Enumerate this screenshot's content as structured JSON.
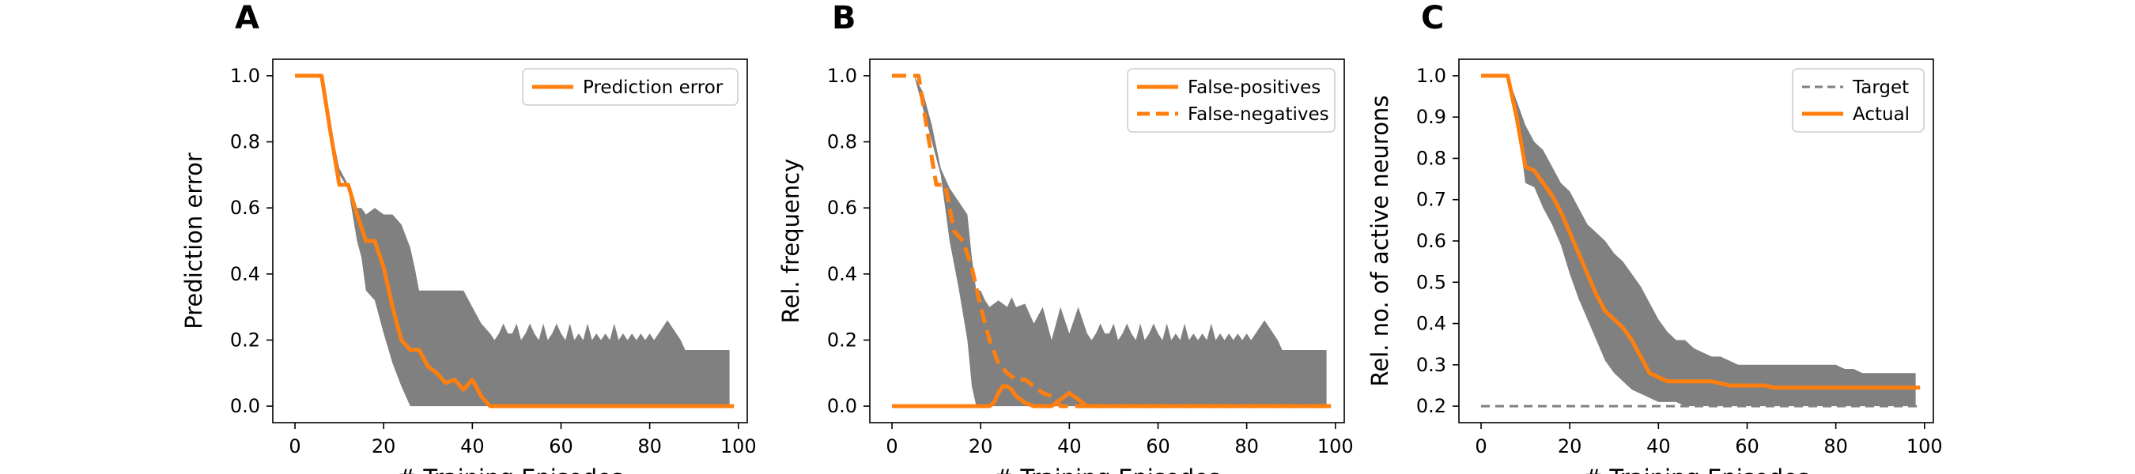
{
  "chart_data": [
    {
      "type": "line",
      "panel_label": "A",
      "xlabel": "# Training Episodes",
      "ylabel": "Prediction error",
      "xlim": [
        -5,
        102
      ],
      "ylim": [
        -0.05,
        1.05
      ],
      "xticks": [
        0,
        20,
        40,
        60,
        80,
        100
      ],
      "yticks": [
        0.0,
        0.2,
        0.4,
        0.6,
        0.8,
        1.0
      ],
      "ytick_labels": [
        "0.0",
        "0.2",
        "0.4",
        "0.6",
        "0.8",
        "1.0"
      ],
      "legend_position": "top-right",
      "band": {
        "color": "#808080",
        "x": [
          0,
          6,
          8,
          10,
          12,
          14,
          15,
          16,
          18,
          20,
          22,
          24,
          26,
          27,
          28,
          30,
          32,
          34,
          36,
          38,
          40,
          42,
          44,
          45,
          46,
          47,
          48,
          49,
          50,
          51,
          52,
          53,
          54,
          55,
          56,
          57,
          58,
          59,
          60,
          61,
          62,
          63,
          64,
          65,
          66,
          67,
          68,
          69,
          70,
          71,
          72,
          73,
          74,
          75,
          76,
          77,
          78,
          79,
          80,
          81,
          82,
          83,
          84,
          85,
          86,
          87,
          88,
          90,
          92,
          94,
          96,
          98
        ],
        "upper": [
          1.0,
          1.0,
          0.85,
          0.72,
          0.67,
          0.6,
          0.6,
          0.58,
          0.6,
          0.58,
          0.58,
          0.55,
          0.48,
          0.42,
          0.35,
          0.35,
          0.35,
          0.35,
          0.35,
          0.35,
          0.3,
          0.25,
          0.22,
          0.2,
          0.22,
          0.25,
          0.22,
          0.22,
          0.25,
          0.2,
          0.22,
          0.25,
          0.22,
          0.2,
          0.25,
          0.2,
          0.22,
          0.25,
          0.22,
          0.2,
          0.25,
          0.2,
          0.22,
          0.2,
          0.25,
          0.2,
          0.22,
          0.2,
          0.22,
          0.2,
          0.25,
          0.2,
          0.22,
          0.2,
          0.22,
          0.2,
          0.22,
          0.2,
          0.22,
          0.2,
          0.22,
          0.24,
          0.26,
          0.24,
          0.22,
          0.2,
          0.17,
          0.17,
          0.17,
          0.17,
          0.17,
          0.17
        ],
        "lower": [
          1.0,
          1.0,
          0.85,
          0.7,
          0.66,
          0.5,
          0.45,
          0.35,
          0.32,
          0.22,
          0.13,
          0.06,
          0.0,
          0.0,
          0.0,
          0.0,
          0.0,
          0.0,
          0.0,
          0.0,
          0.0,
          0.0,
          0.0,
          0.0,
          0.0,
          0.0,
          0.0,
          0.0,
          0.0,
          0.0,
          0.0,
          0.0,
          0.0,
          0.0,
          0.0,
          0.0,
          0.0,
          0.0,
          0.0,
          0.0,
          0.0,
          0.0,
          0.0,
          0.0,
          0.0,
          0.0,
          0.0,
          0.0,
          0.0,
          0.0,
          0.0,
          0.0,
          0.0,
          0.0,
          0.0,
          0.0,
          0.0,
          0.0,
          0.0,
          0.0,
          0.0,
          0.0,
          0.0,
          0.0,
          0.0,
          0.0,
          0.0,
          0.0,
          0.0,
          0.0,
          0.0,
          0.0
        ]
      },
      "series": [
        {
          "name": "Prediction error",
          "color": "#ff7f0e",
          "dash": "solid",
          "x": [
            0,
            6,
            8,
            10,
            12,
            14,
            16,
            18,
            20,
            22,
            24,
            26,
            28,
            30,
            32,
            34,
            36,
            38,
            40,
            42,
            44,
            46,
            60,
            80,
            99
          ],
          "y": [
            1.0,
            1.0,
            0.83,
            0.67,
            0.67,
            0.58,
            0.5,
            0.5,
            0.42,
            0.3,
            0.2,
            0.17,
            0.17,
            0.12,
            0.1,
            0.07,
            0.08,
            0.05,
            0.08,
            0.03,
            0.0,
            0.0,
            0.0,
            0.0,
            0.0
          ]
        }
      ]
    },
    {
      "type": "line",
      "panel_label": "B",
      "xlabel": "# Training Episodes",
      "ylabel": "Rel. frequency",
      "xlim": [
        -5,
        102
      ],
      "ylim": [
        -0.05,
        1.05
      ],
      "xticks": [
        0,
        20,
        40,
        60,
        80,
        100
      ],
      "yticks": [
        0.0,
        0.2,
        0.4,
        0.6,
        0.8,
        1.0
      ],
      "ytick_labels": [
        "0.0",
        "0.2",
        "0.4",
        "0.6",
        "0.8",
        "1.0"
      ],
      "legend_position": "top-right",
      "band": {
        "color": "#808080",
        "x": [
          0,
          5,
          7,
          9,
          11,
          13,
          15,
          17,
          18,
          19,
          20,
          21,
          22,
          24,
          26,
          27,
          28,
          30,
          32,
          34,
          36,
          38,
          40,
          42,
          44,
          45,
          46,
          47,
          48,
          49,
          50,
          51,
          52,
          53,
          54,
          55,
          56,
          57,
          58,
          59,
          60,
          61,
          62,
          63,
          64,
          65,
          66,
          67,
          68,
          69,
          70,
          71,
          72,
          73,
          74,
          75,
          76,
          77,
          78,
          79,
          80,
          81,
          82,
          83,
          84,
          85,
          86,
          87,
          88,
          90,
          92,
          94,
          96,
          98
        ],
        "upper": [
          1.0,
          1.0,
          0.95,
          0.85,
          0.72,
          0.66,
          0.62,
          0.58,
          0.45,
          0.35,
          0.35,
          0.32,
          0.3,
          0.32,
          0.3,
          0.33,
          0.3,
          0.31,
          0.25,
          0.3,
          0.2,
          0.3,
          0.22,
          0.3,
          0.22,
          0.2,
          0.22,
          0.25,
          0.22,
          0.22,
          0.25,
          0.2,
          0.22,
          0.25,
          0.22,
          0.2,
          0.25,
          0.2,
          0.22,
          0.25,
          0.22,
          0.2,
          0.25,
          0.2,
          0.22,
          0.2,
          0.25,
          0.2,
          0.22,
          0.2,
          0.22,
          0.2,
          0.25,
          0.2,
          0.22,
          0.2,
          0.22,
          0.2,
          0.22,
          0.2,
          0.22,
          0.2,
          0.22,
          0.24,
          0.26,
          0.24,
          0.22,
          0.2,
          0.17,
          0.17,
          0.17,
          0.17,
          0.17,
          0.17
        ],
        "lower": [
          1.0,
          1.0,
          0.9,
          0.8,
          0.7,
          0.5,
          0.36,
          0.2,
          0.06,
          0.0,
          0.0,
          0.0,
          0.0,
          0.0,
          0.0,
          0.0,
          0.0,
          0.0,
          0.0,
          0.0,
          0.0,
          0.0,
          0.0,
          0.0,
          0.0,
          0.0,
          0.0,
          0.0,
          0.0,
          0.0,
          0.0,
          0.0,
          0.0,
          0.0,
          0.0,
          0.0,
          0.0,
          0.0,
          0.0,
          0.0,
          0.0,
          0.0,
          0.0,
          0.0,
          0.0,
          0.0,
          0.0,
          0.0,
          0.0,
          0.0,
          0.0,
          0.0,
          0.0,
          0.0,
          0.0,
          0.0,
          0.0,
          0.0,
          0.0,
          0.0,
          0.0,
          0.0,
          0.0,
          0.0,
          0.0,
          0.0,
          0.0,
          0.0,
          0.0,
          0.0,
          0.0,
          0.0,
          0.0,
          0.0
        ]
      },
      "series": [
        {
          "name": "False-positives",
          "color": "#ff7f0e",
          "dash": "solid",
          "x": [
            0,
            10,
            20,
            22,
            23,
            24,
            25,
            26,
            27,
            28,
            30,
            32,
            34,
            36,
            37,
            38,
            39,
            40,
            41,
            42,
            43,
            44,
            60,
            80,
            99
          ],
          "y": [
            0.0,
            0.0,
            0.0,
            0.0,
            0.01,
            0.04,
            0.06,
            0.06,
            0.05,
            0.03,
            0.01,
            0.0,
            0.0,
            0.0,
            0.01,
            0.02,
            0.03,
            0.04,
            0.03,
            0.02,
            0.01,
            0.0,
            0.0,
            0.0,
            0.0
          ]
        },
        {
          "name": "False-negatives",
          "color": "#ff7f0e",
          "dash": "dashed",
          "x": [
            0,
            6,
            8,
            10,
            12,
            14,
            16,
            18,
            20,
            22,
            24,
            26,
            28,
            30,
            32,
            34,
            36,
            38,
            40,
            42,
            44,
            60,
            80,
            99
          ],
          "y": [
            1.0,
            1.0,
            0.83,
            0.67,
            0.67,
            0.53,
            0.5,
            0.42,
            0.3,
            0.2,
            0.13,
            0.1,
            0.08,
            0.08,
            0.06,
            0.04,
            0.03,
            0.0,
            0.0,
            0.0,
            0.0,
            0.0,
            0.0,
            0.0
          ]
        }
      ]
    },
    {
      "type": "line",
      "panel_label": "C",
      "xlabel": "# Training Episodes",
      "ylabel": "Rel. no. of active neurons",
      "xlim": [
        -5,
        102
      ],
      "ylim": [
        0.16,
        1.04
      ],
      "xticks": [
        0,
        20,
        40,
        60,
        80,
        100
      ],
      "yticks": [
        0.2,
        0.3,
        0.4,
        0.5,
        0.6,
        0.7,
        0.8,
        0.9,
        1.0
      ],
      "ytick_labels": [
        "0.2",
        "0.3",
        "0.4",
        "0.5",
        "0.6",
        "0.7",
        "0.8",
        "0.9",
        "1.0"
      ],
      "legend_position": "top-right",
      "band": {
        "color": "#808080",
        "x": [
          0,
          6,
          8,
          10,
          12,
          14,
          16,
          18,
          20,
          22,
          24,
          26,
          28,
          30,
          32,
          34,
          36,
          38,
          40,
          42,
          44,
          46,
          48,
          50,
          52,
          54,
          56,
          58,
          60,
          62,
          64,
          66,
          68,
          70,
          72,
          74,
          76,
          78,
          80,
          82,
          84,
          86,
          88,
          90,
          92,
          94,
          96,
          98
        ],
        "upper": [
          1.0,
          1.0,
          0.94,
          0.88,
          0.84,
          0.82,
          0.78,
          0.74,
          0.72,
          0.68,
          0.64,
          0.62,
          0.6,
          0.57,
          0.55,
          0.52,
          0.49,
          0.45,
          0.41,
          0.38,
          0.36,
          0.36,
          0.34,
          0.33,
          0.32,
          0.32,
          0.31,
          0.3,
          0.3,
          0.3,
          0.3,
          0.3,
          0.3,
          0.3,
          0.3,
          0.3,
          0.3,
          0.3,
          0.3,
          0.29,
          0.29,
          0.28,
          0.28,
          0.28,
          0.28,
          0.28,
          0.28,
          0.28
        ],
        "lower": [
          1.0,
          1.0,
          0.9,
          0.74,
          0.73,
          0.68,
          0.64,
          0.59,
          0.52,
          0.46,
          0.41,
          0.36,
          0.31,
          0.28,
          0.26,
          0.24,
          0.23,
          0.22,
          0.21,
          0.21,
          0.21,
          0.2,
          0.2,
          0.2,
          0.2,
          0.2,
          0.2,
          0.2,
          0.2,
          0.2,
          0.2,
          0.2,
          0.2,
          0.2,
          0.2,
          0.2,
          0.2,
          0.2,
          0.2,
          0.2,
          0.2,
          0.2,
          0.2,
          0.2,
          0.2,
          0.2,
          0.2,
          0.2
        ]
      },
      "series": [
        {
          "name": "Target",
          "color": "#808080",
          "dash": "dashed",
          "x": [
            0,
            99
          ],
          "y": [
            0.2,
            0.2
          ]
        },
        {
          "name": "Actual",
          "color": "#ff7f0e",
          "dash": "solid",
          "x": [
            0,
            6,
            8,
            10,
            12,
            14,
            16,
            18,
            20,
            22,
            24,
            26,
            28,
            30,
            32,
            34,
            36,
            38,
            40,
            42,
            44,
            46,
            48,
            50,
            52,
            54,
            56,
            58,
            60,
            62,
            64,
            66,
            68,
            70,
            72,
            74,
            76,
            78,
            80,
            85,
            90,
            95,
            99
          ],
          "y": [
            1.0,
            1.0,
            0.9,
            0.78,
            0.77,
            0.74,
            0.71,
            0.67,
            0.62,
            0.57,
            0.52,
            0.47,
            0.43,
            0.41,
            0.39,
            0.36,
            0.32,
            0.28,
            0.27,
            0.26,
            0.26,
            0.26,
            0.26,
            0.26,
            0.26,
            0.255,
            0.25,
            0.25,
            0.25,
            0.25,
            0.25,
            0.245,
            0.245,
            0.245,
            0.245,
            0.245,
            0.245,
            0.245,
            0.245,
            0.245,
            0.245,
            0.245,
            0.245
          ]
        }
      ]
    }
  ]
}
